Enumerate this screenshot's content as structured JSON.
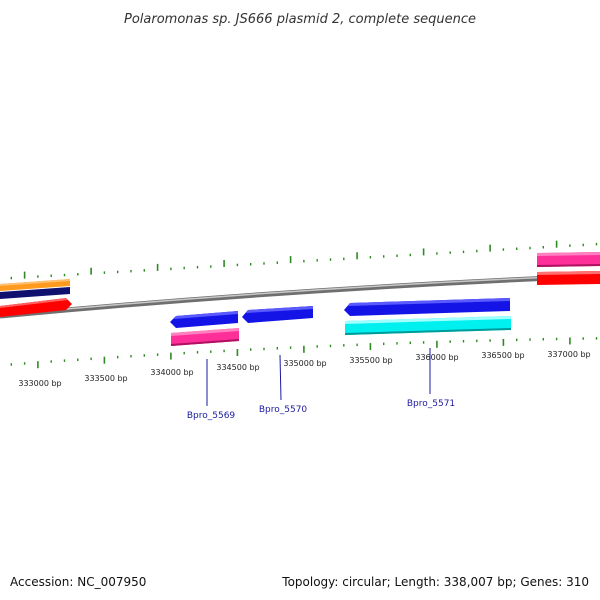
{
  "title": "Polaromonas sp. JS666 plasmid 2, complete sequence",
  "footer": {
    "accession": "Accession: NC_007950",
    "topology": "Topology: circular; Length: 338,007 bp; Genes: 310"
  },
  "ticks": [
    {
      "position": 333000,
      "label": "333000 bp"
    },
    {
      "position": 333500,
      "label": "333500 bp"
    },
    {
      "position": 334000,
      "label": "334000 bp"
    },
    {
      "position": 334500,
      "label": "334500 bp"
    },
    {
      "position": 335000,
      "label": "335000 bp"
    },
    {
      "position": 335500,
      "label": "335500 bp"
    },
    {
      "position": 336000,
      "label": "336000 bp"
    },
    {
      "position": 336500,
      "label": "336500 bp"
    },
    {
      "position": 337000,
      "label": "337000 bp"
    }
  ],
  "gene_labels": [
    "Bpro_5569",
    "Bpro_5570",
    "Bpro_5571"
  ],
  "colors": {
    "backbone": "#8a8a8a",
    "tick": "#2e8b22",
    "blue": "#1414e6",
    "cyan": "#00f0f0",
    "magenta": "#ff2f9a",
    "red": "#ff0000",
    "orange": "#ff9a1f",
    "navy": "#10106e",
    "label_line": "#1a1aa0"
  }
}
